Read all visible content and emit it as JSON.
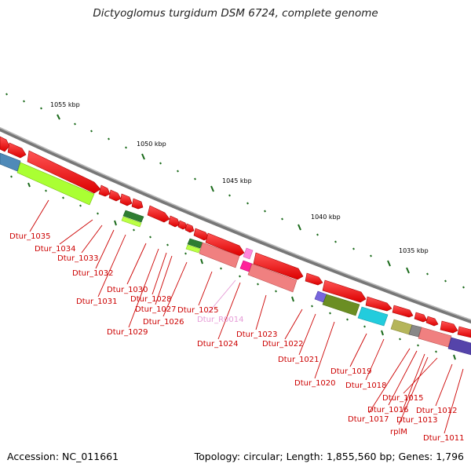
{
  "title": "Dictyoglomus turgidum DSM 6724, complete genome",
  "footer": {
    "accession": "Accession: NC_011661",
    "topology": "Topology: circular; Length: 1,855,560 bp; Genes: 1,796"
  },
  "ticks": [
    {
      "label": "1055 kbp"
    },
    {
      "label": "1050 kbp"
    },
    {
      "label": "1045 kbp"
    },
    {
      "label": "1040 kbp"
    },
    {
      "label": "1035 kbp"
    }
  ],
  "genes": [
    {
      "label": "Dtur_1035"
    },
    {
      "label": "Dtur_1034"
    },
    {
      "label": "Dtur_1033"
    },
    {
      "label": "Dtur_1032"
    },
    {
      "label": "Dtur_1031"
    },
    {
      "label": "Dtur_1030"
    },
    {
      "label": "Dtur_1029"
    },
    {
      "label": "Dtur_1028"
    },
    {
      "label": "Dtur_1027"
    },
    {
      "label": "Dtur_1026"
    },
    {
      "label": "Dtur_1025"
    },
    {
      "label": "Dtur_R0014"
    },
    {
      "label": "Dtur_1024"
    },
    {
      "label": "Dtur_1023"
    },
    {
      "label": "Dtur_1022"
    },
    {
      "label": "Dtur_1021"
    },
    {
      "label": "Dtur_1020"
    },
    {
      "label": "Dtur_1019"
    },
    {
      "label": "Dtur_1018"
    },
    {
      "label": "Dtur_1017"
    },
    {
      "label": "Dtur_1016"
    },
    {
      "label": "Dtur_1015"
    },
    {
      "label": "Dtur_1013"
    },
    {
      "label": "rplM"
    },
    {
      "label": "Dtur_1012"
    },
    {
      "label": "Dtur_1011"
    }
  ],
  "colors": {
    "cds": "#ff0000",
    "rna": "#ff88dd",
    "label": "#cc0000",
    "backbone": "#888888",
    "gc_tick": "#2a7a1a"
  }
}
